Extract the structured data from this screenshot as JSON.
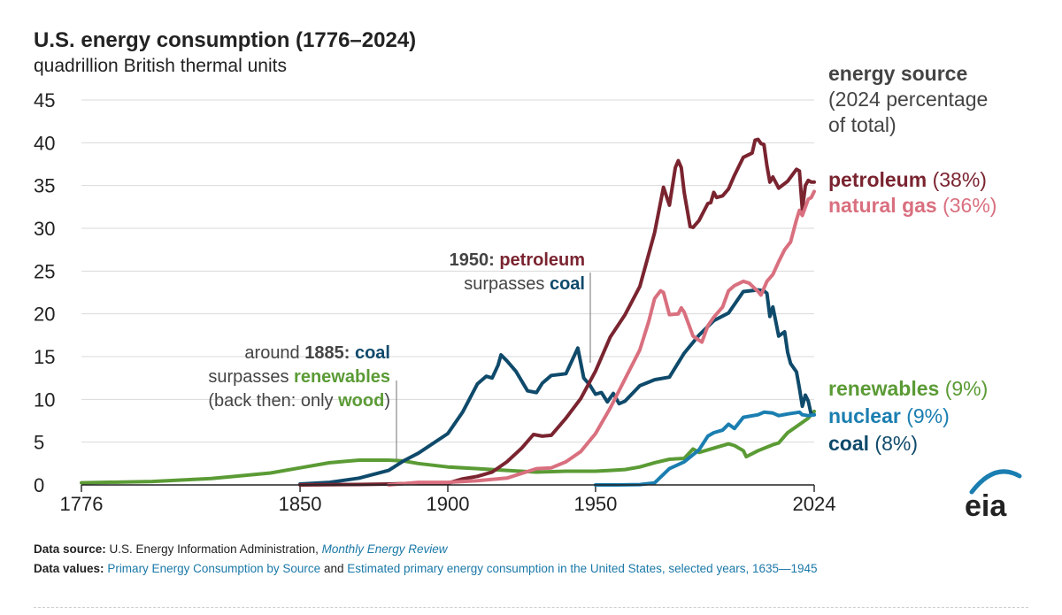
{
  "header": {
    "title": "U.S. energy consumption (1776–2024)",
    "subtitle": "quadrillion British thermal units"
  },
  "legend": {
    "heading": "energy source",
    "heading_note_1": "(2024 percentage",
    "heading_note_2": "of total)",
    "items": [
      {
        "name": "petroleum",
        "pct": "(38%)",
        "color": "#7a2430"
      },
      {
        "name": "natural gas",
        "pct": "(36%)",
        "color": "#d9707f"
      },
      {
        "name": "renewables",
        "pct": "(9%)",
        "color": "#5b9b35"
      },
      {
        "name": "nuclear",
        "pct": "(9%)",
        "color": "#1a7eb0"
      },
      {
        "name": "coal",
        "pct": "(8%)",
        "color": "#0f4a6b"
      }
    ]
  },
  "annotations": {
    "a1885": {
      "prefix": "around",
      "year": "1885:",
      "subject": "coal",
      "verb": "surpasses",
      "object": "renewables",
      "note_open": "(back then: only",
      "note_word": "wood",
      "note_close": ")"
    },
    "a1950": {
      "year": "1950:",
      "subject": "petroleum",
      "verb": "surpasses",
      "object": "coal"
    }
  },
  "footer": {
    "source_label": "Data source:",
    "source_text": "U.S. Energy Information Administration,",
    "source_link": "Monthly Energy Review",
    "values_label": "Data values:",
    "values_link1": "Primary Energy Consumption by Source",
    "values_and": "and",
    "values_link2": "Estimated primary energy consumption in the United States, selected years, 1635—1945"
  },
  "logo": {
    "text": "eia"
  },
  "chart_data": {
    "type": "line",
    "title": "U.S. energy consumption (1776–2024)",
    "ylabel": "quadrillion British thermal units",
    "xlim": [
      1776,
      2024
    ],
    "ylim": [
      0,
      45
    ],
    "x_ticks": [
      "1776",
      "1850",
      "1900",
      "1950",
      "2024"
    ],
    "x_tick_values": [
      1776,
      1850,
      1900,
      1950,
      2024
    ],
    "y_ticks": [
      0,
      5,
      10,
      15,
      20,
      25,
      30,
      35,
      40,
      45
    ],
    "grid": "horizontal",
    "legend_position": "right",
    "series": [
      {
        "name": "renewables",
        "color": "#5b9b35",
        "points": [
          [
            1776,
            0.25
          ],
          [
            1800,
            0.4
          ],
          [
            1820,
            0.75
          ],
          [
            1840,
            1.4
          ],
          [
            1850,
            2.0
          ],
          [
            1860,
            2.6
          ],
          [
            1870,
            2.9
          ],
          [
            1880,
            2.9
          ],
          [
            1885,
            2.8
          ],
          [
            1890,
            2.5
          ],
          [
            1900,
            2.1
          ],
          [
            1910,
            1.9
          ],
          [
            1920,
            1.7
          ],
          [
            1930,
            1.5
          ],
          [
            1940,
            1.6
          ],
          [
            1945,
            1.6
          ],
          [
            1950,
            1.6
          ],
          [
            1955,
            1.7
          ],
          [
            1960,
            1.8
          ],
          [
            1965,
            2.1
          ],
          [
            1970,
            2.6
          ],
          [
            1975,
            3.0
          ],
          [
            1980,
            3.1
          ],
          [
            1983,
            4.2
          ],
          [
            1985,
            3.8
          ],
          [
            1990,
            4.3
          ],
          [
            1995,
            4.8
          ],
          [
            1997,
            4.6
          ],
          [
            2000,
            4.0
          ],
          [
            2001,
            3.3
          ],
          [
            2005,
            4.0
          ],
          [
            2010,
            4.7
          ],
          [
            2012,
            4.9
          ],
          [
            2015,
            6.1
          ],
          [
            2020,
            7.3
          ],
          [
            2022,
            7.8
          ],
          [
            2024,
            8.6
          ]
        ]
      },
      {
        "name": "coal",
        "color": "#0f4a6b",
        "points": [
          [
            1850,
            0.1
          ],
          [
            1860,
            0.3
          ],
          [
            1870,
            0.8
          ],
          [
            1880,
            1.7
          ],
          [
            1885,
            2.8
          ],
          [
            1890,
            3.7
          ],
          [
            1900,
            6.0
          ],
          [
            1905,
            8.5
          ],
          [
            1910,
            11.8
          ],
          [
            1913,
            12.7
          ],
          [
            1915,
            12.5
          ],
          [
            1917,
            14.0
          ],
          [
            1918,
            15.2
          ],
          [
            1920,
            14.5
          ],
          [
            1923,
            13.3
          ],
          [
            1927,
            11.0
          ],
          [
            1930,
            10.8
          ],
          [
            1932,
            11.9
          ],
          [
            1935,
            12.8
          ],
          [
            1940,
            13.0
          ],
          [
            1944,
            16.0
          ],
          [
            1946,
            12.5
          ],
          [
            1948,
            11.7
          ],
          [
            1950,
            10.6
          ],
          [
            1952,
            10.8
          ],
          [
            1954,
            9.7
          ],
          [
            1956,
            10.7
          ],
          [
            1958,
            9.5
          ],
          [
            1960,
            9.8
          ],
          [
            1965,
            11.6
          ],
          [
            1970,
            12.3
          ],
          [
            1975,
            12.6
          ],
          [
            1980,
            15.4
          ],
          [
            1985,
            17.5
          ],
          [
            1990,
            19.2
          ],
          [
            1995,
            20.1
          ],
          [
            2000,
            22.6
          ],
          [
            2005,
            22.8
          ],
          [
            2007,
            22.7
          ],
          [
            2008,
            22.4
          ],
          [
            2009,
            19.7
          ],
          [
            2010,
            20.8
          ],
          [
            2012,
            17.4
          ],
          [
            2014,
            17.9
          ],
          [
            2015,
            15.5
          ],
          [
            2016,
            14.2
          ],
          [
            2018,
            13.2
          ],
          [
            2019,
            11.3
          ],
          [
            2020,
            9.2
          ],
          [
            2021,
            10.5
          ],
          [
            2022,
            9.8
          ],
          [
            2023,
            8.2
          ],
          [
            2024,
            8.2
          ]
        ]
      },
      {
        "name": "petroleum",
        "color": "#7a2430",
        "points": [
          [
            1850,
            0.0
          ],
          [
            1870,
            0.05
          ],
          [
            1880,
            0.1
          ],
          [
            1890,
            0.2
          ],
          [
            1900,
            0.2
          ],
          [
            1905,
            0.7
          ],
          [
            1910,
            1.0
          ],
          [
            1915,
            1.5
          ],
          [
            1920,
            2.7
          ],
          [
            1925,
            4.3
          ],
          [
            1929,
            5.9
          ],
          [
            1932,
            5.7
          ],
          [
            1935,
            5.8
          ],
          [
            1940,
            7.8
          ],
          [
            1945,
            10.1
          ],
          [
            1950,
            13.3
          ],
          [
            1955,
            17.3
          ],
          [
            1960,
            19.9
          ],
          [
            1965,
            23.2
          ],
          [
            1970,
            29.5
          ],
          [
            1973,
            34.8
          ],
          [
            1975,
            32.7
          ],
          [
            1977,
            37.1
          ],
          [
            1978,
            37.9
          ],
          [
            1979,
            37.1
          ],
          [
            1980,
            34.2
          ],
          [
            1982,
            30.2
          ],
          [
            1983,
            30.1
          ],
          [
            1985,
            30.9
          ],
          [
            1988,
            32.9
          ],
          [
            1989,
            33.0
          ],
          [
            1990,
            34.2
          ],
          [
            1991,
            33.6
          ],
          [
            1993,
            33.8
          ],
          [
            1995,
            34.6
          ],
          [
            1997,
            36.2
          ],
          [
            2000,
            38.3
          ],
          [
            2003,
            38.8
          ],
          [
            2004,
            40.3
          ],
          [
            2005,
            40.4
          ],
          [
            2006,
            39.9
          ],
          [
            2007,
            39.8
          ],
          [
            2008,
            37.3
          ],
          [
            2009,
            35.4
          ],
          [
            2010,
            36.0
          ],
          [
            2012,
            34.7
          ],
          [
            2015,
            35.5
          ],
          [
            2018,
            36.9
          ],
          [
            2019,
            36.7
          ],
          [
            2020,
            32.2
          ],
          [
            2021,
            35.0
          ],
          [
            2022,
            35.6
          ],
          [
            2023,
            35.4
          ],
          [
            2024,
            35.4
          ]
        ]
      },
      {
        "name": "natural gas",
        "color": "#d9707f",
        "points": [
          [
            1880,
            0.0
          ],
          [
            1890,
            0.3
          ],
          [
            1900,
            0.3
          ],
          [
            1910,
            0.5
          ],
          [
            1920,
            0.8
          ],
          [
            1930,
            1.9
          ],
          [
            1935,
            2.0
          ],
          [
            1940,
            2.7
          ],
          [
            1945,
            3.9
          ],
          [
            1950,
            6.0
          ],
          [
            1955,
            9.0
          ],
          [
            1960,
            12.4
          ],
          [
            1965,
            15.8
          ],
          [
            1968,
            19.1
          ],
          [
            1970,
            21.8
          ],
          [
            1972,
            22.7
          ],
          [
            1973,
            22.5
          ],
          [
            1975,
            19.9
          ],
          [
            1978,
            20.0
          ],
          [
            1979,
            20.7
          ],
          [
            1980,
            20.2
          ],
          [
            1983,
            17.4
          ],
          [
            1986,
            16.7
          ],
          [
            1988,
            18.6
          ],
          [
            1990,
            19.6
          ],
          [
            1993,
            20.8
          ],
          [
            1995,
            22.7
          ],
          [
            1997,
            23.3
          ],
          [
            2000,
            23.8
          ],
          [
            2002,
            23.6
          ],
          [
            2005,
            22.6
          ],
          [
            2006,
            22.2
          ],
          [
            2008,
            23.8
          ],
          [
            2010,
            24.6
          ],
          [
            2012,
            26.1
          ],
          [
            2014,
            27.5
          ],
          [
            2016,
            28.4
          ],
          [
            2018,
            31.0
          ],
          [
            2019,
            32.1
          ],
          [
            2020,
            31.5
          ],
          [
            2022,
            33.4
          ],
          [
            2023,
            33.6
          ],
          [
            2024,
            34.3
          ]
        ]
      },
      {
        "name": "nuclear",
        "color": "#1a7eb0",
        "points": [
          [
            1950,
            0.0
          ],
          [
            1957,
            0.0
          ],
          [
            1960,
            0.01
          ],
          [
            1965,
            0.04
          ],
          [
            1970,
            0.24
          ],
          [
            1975,
            1.9
          ],
          [
            1980,
            2.7
          ],
          [
            1985,
            4.1
          ],
          [
            1988,
            5.7
          ],
          [
            1990,
            6.1
          ],
          [
            1993,
            6.4
          ],
          [
            1995,
            7.1
          ],
          [
            1997,
            6.6
          ],
          [
            2000,
            7.9
          ],
          [
            2005,
            8.2
          ],
          [
            2007,
            8.5
          ],
          [
            2010,
            8.4
          ],
          [
            2012,
            8.1
          ],
          [
            2015,
            8.3
          ],
          [
            2019,
            8.5
          ],
          [
            2020,
            8.2
          ],
          [
            2022,
            8.1
          ],
          [
            2024,
            8.2
          ]
        ]
      }
    ]
  }
}
